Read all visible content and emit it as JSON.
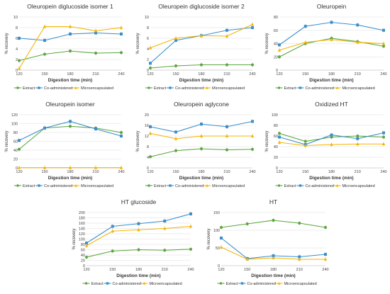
{
  "chart_data": [
    {
      "type": "line",
      "title": "Oleuropein diglucoside isomer 1",
      "xlabel": "Digestion time (min)",
      "ylabel": "% recovery",
      "x": [
        120,
        150,
        180,
        210,
        240
      ],
      "xticks": [
        120,
        150,
        180,
        210,
        240
      ],
      "xlim": [
        120,
        240
      ],
      "ylim": [
        0,
        10
      ],
      "yticks": [
        0,
        2,
        4,
        6,
        8,
        10
      ],
      "series": [
        {
          "name": "Extract",
          "color": "#5aa63c",
          "values": [
            1.8,
            3.0,
            3.6,
            3.2,
            3.3
          ]
        },
        {
          "name": "Co-administered",
          "color": "#3a8fcc",
          "values": [
            6.0,
            5.6,
            6.8,
            7.0,
            6.8
          ]
        },
        {
          "name": "Microencapsulated",
          "color": "#f5b400",
          "values": [
            0.3,
            8.2,
            8.2,
            7.4,
            8.0
          ]
        }
      ]
    },
    {
      "type": "line",
      "title": "Oleuropein diglucoside isomer 2",
      "xlabel": "Digestion time (min)",
      "ylabel": "% recovery",
      "x": [
        120,
        150,
        180,
        210,
        240
      ],
      "xticks": [
        120,
        150,
        180,
        210,
        240
      ],
      "xlim": [
        120,
        240
      ],
      "ylim": [
        0,
        10
      ],
      "yticks": [
        0,
        2,
        4,
        6,
        8,
        10
      ],
      "series": [
        {
          "name": "Extract",
          "color": "#5aa63c",
          "values": [
            0.4,
            0.8,
            1.0,
            1.0,
            1.0
          ]
        },
        {
          "name": "Co-administered",
          "color": "#3a8fcc",
          "values": [
            1.3,
            5.6,
            6.5,
            7.5,
            8.0
          ]
        },
        {
          "name": "Microencapsulated",
          "color": "#f5b400",
          "values": [
            4.2,
            6.0,
            6.5,
            6.4,
            8.6
          ]
        }
      ]
    },
    {
      "type": "line",
      "title": "Oleuropein",
      "xlabel": "Digestion time (min)",
      "ylabel": "% recovery",
      "x": [
        120,
        150,
        180,
        210,
        240
      ],
      "xticks": [
        120,
        150,
        180,
        210,
        240
      ],
      "xlim": [
        120,
        240
      ],
      "ylim": [
        0,
        80
      ],
      "yticks": [
        0,
        20,
        40,
        60,
        80
      ],
      "series": [
        {
          "name": "Extract",
          "color": "#5aa63c",
          "values": [
            20,
            40,
            48,
            43,
            36
          ]
        },
        {
          "name": "Co-administered",
          "color": "#3a8fcc",
          "values": [
            38,
            66,
            72,
            68,
            60
          ]
        },
        {
          "name": "Microencapsulated",
          "color": "#f5b400",
          "values": [
            30,
            42,
            46,
            42,
            40
          ]
        }
      ]
    },
    {
      "type": "line",
      "title": "Oleuropein isomer",
      "xlabel": "Digestion time (min)",
      "ylabel": "% recovery",
      "x": [
        120,
        150,
        180,
        210,
        240
      ],
      "xticks": [
        120,
        150,
        180,
        210,
        240
      ],
      "xlim": [
        120,
        240
      ],
      "ylim": [
        0,
        120
      ],
      "yticks": [
        0,
        20,
        40,
        60,
        80,
        100,
        120
      ],
      "series": [
        {
          "name": "Extract",
          "color": "#5aa63c",
          "values": [
            42,
            90,
            94,
            90,
            80
          ]
        },
        {
          "name": "Co-administered",
          "color": "#3a8fcc",
          "values": [
            62,
            90,
            105,
            88,
            72
          ]
        },
        {
          "name": "Microencapsulated",
          "color": "#f5b400",
          "values": [
            0.5,
            0.5,
            0.5,
            0.5,
            0.5
          ]
        }
      ]
    },
    {
      "type": "line",
      "title": "Oleuropein aglycone",
      "xlabel": "Digestion time (min)",
      "ylabel": "% recovery",
      "x": [
        120,
        150,
        180,
        210,
        240
      ],
      "xticks": [
        120,
        150,
        180,
        210,
        240
      ],
      "xlim": [
        120,
        240
      ],
      "ylim": [
        0,
        20
      ],
      "yticks": [
        0,
        4,
        8,
        12,
        16,
        20
      ],
      "series": [
        {
          "name": "Extract",
          "color": "#5aa63c",
          "values": [
            4.2,
            6.5,
            7.2,
            6.8,
            7.0
          ]
        },
        {
          "name": "Co-administered",
          "color": "#3a8fcc",
          "values": [
            15.5,
            13.5,
            16.5,
            15.5,
            17.5
          ]
        },
        {
          "name": "Microencapsulated",
          "color": "#f5b400",
          "values": [
            13.0,
            11.0,
            12.0,
            12.0,
            12.0
          ]
        }
      ]
    },
    {
      "type": "line",
      "title": "Oxidized HT",
      "xlabel": "Digestion time (min)",
      "ylabel": "% recovery",
      "x": [
        120,
        150,
        180,
        210,
        240
      ],
      "xticks": [
        120,
        150,
        180,
        210,
        240
      ],
      "xlim": [
        120,
        240
      ],
      "ylim": [
        0,
        100
      ],
      "yticks": [
        0,
        20,
        40,
        60,
        80,
        100
      ],
      "series": [
        {
          "name": "Extract",
          "color": "#5aa63c",
          "values": [
            65,
            50,
            58,
            60,
            58
          ]
        },
        {
          "name": "Co-administered",
          "color": "#3a8fcc",
          "values": [
            58,
            44,
            62,
            55,
            66
          ]
        },
        {
          "name": "Microencapsulated",
          "color": "#f5b400",
          "values": [
            48,
            42,
            44,
            45,
            45
          ]
        }
      ]
    },
    {
      "type": "line",
      "title": "HT glucoside",
      "xlabel": "Digestion time (min)",
      "ylabel": "% recovery",
      "x": [
        120,
        150,
        180,
        210,
        240
      ],
      "xticks": [
        120,
        150,
        180,
        210,
        240
      ],
      "xlim": [
        120,
        240
      ],
      "ylim": [
        0,
        200
      ],
      "yticks": [
        0,
        20,
        40,
        60,
        80,
        100,
        120,
        140,
        160,
        180,
        200
      ],
      "series": [
        {
          "name": "Extract",
          "color": "#5aa63c",
          "values": [
            32,
            55,
            60,
            58,
            62
          ]
        },
        {
          "name": "Co-administered",
          "color": "#3a8fcc",
          "values": [
            85,
            148,
            158,
            168,
            195
          ]
        },
        {
          "name": "Microencapsulated",
          "color": "#f5b400",
          "values": [
            75,
            130,
            135,
            140,
            148
          ]
        }
      ]
    },
    {
      "type": "line",
      "title": "HT",
      "xlabel": "Digestion time (min)",
      "ylabel": "% recovery",
      "x": [
        120,
        150,
        180,
        210,
        240
      ],
      "xticks": [
        120,
        150,
        180,
        210,
        240
      ],
      "xlim": [
        120,
        240
      ],
      "ylim": [
        0,
        150
      ],
      "yticks": [
        0,
        50,
        100,
        150
      ],
      "series": [
        {
          "name": "Extract",
          "color": "#5aa63c",
          "values": [
            108,
            118,
            128,
            120,
            108
          ]
        },
        {
          "name": "Co-administered",
          "color": "#3a8fcc",
          "values": [
            78,
            20,
            28,
            25,
            32
          ]
        },
        {
          "name": "Microencapsulated",
          "color": "#f5b400",
          "values": [
            52,
            18,
            22,
            18,
            18
          ]
        }
      ]
    }
  ]
}
